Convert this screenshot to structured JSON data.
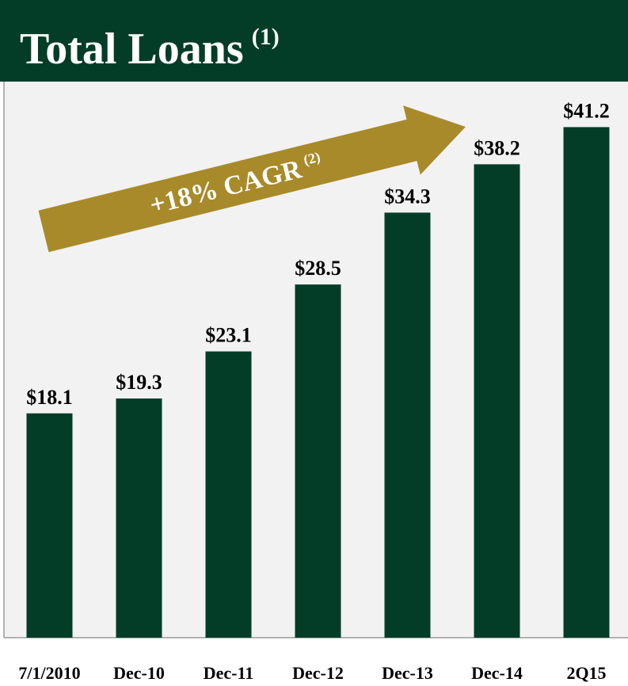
{
  "chart_data": {
    "type": "bar",
    "title": "Total Loans",
    "title_note": "(1)",
    "annotation": "+18% CAGR",
    "annotation_note": "(2)",
    "categories": [
      "7/1/2010",
      "Dec-10",
      "Dec-11",
      "Dec-12",
      "Dec-13",
      "Dec-14",
      "2Q15"
    ],
    "values": [
      18.1,
      19.3,
      23.1,
      28.5,
      34.3,
      38.2,
      41.2
    ],
    "value_labels": [
      "$18.1",
      "$19.3",
      "$23.1",
      "$28.5",
      "$34.3",
      "$38.2",
      "$41.2"
    ],
    "color": "#033d28",
    "ylim": [
      0,
      45
    ]
  }
}
